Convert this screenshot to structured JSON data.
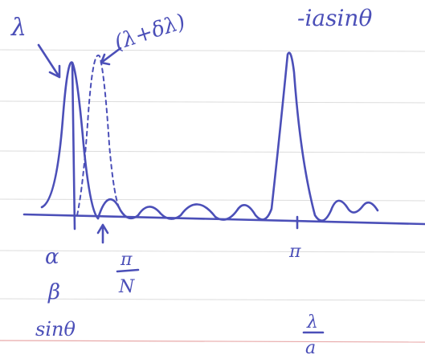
{
  "annotations": {
    "top_right": "-iasinθ",
    "lambda": "λ",
    "lambda_shift": "(λ+δλ)",
    "alpha": "α",
    "beta": "β",
    "sin_theta": "sinθ",
    "pi_over_n": {
      "numerator": "π",
      "denominator": "N"
    },
    "pi": "π",
    "lambda_over_a": {
      "numerator": "λ",
      "denominator": "a"
    }
  }
}
